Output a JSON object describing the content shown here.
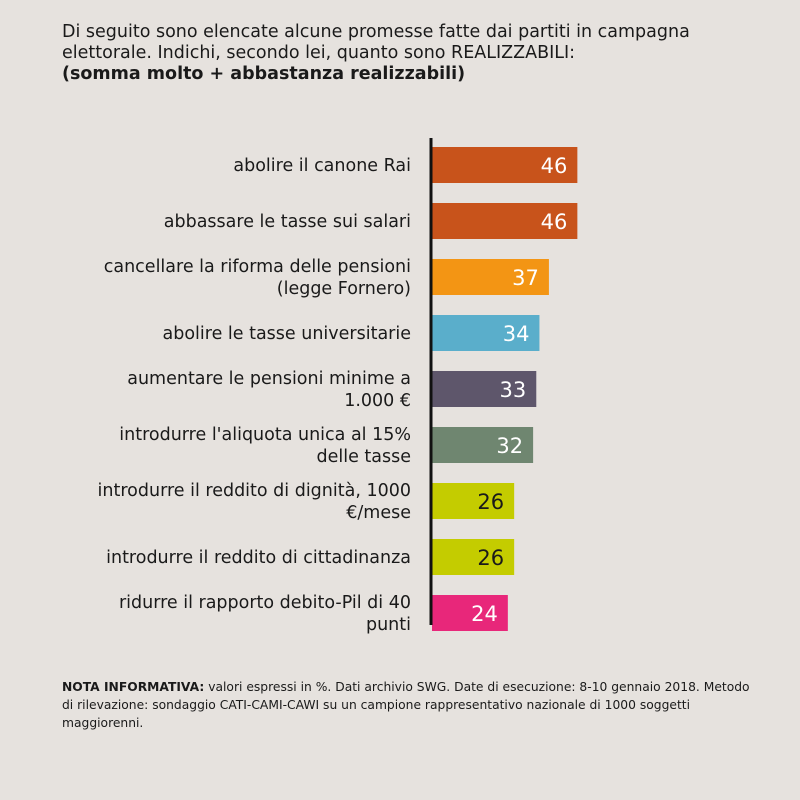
{
  "header": {
    "question": "Di seguito sono elencate alcune promesse fatte dai partiti in campagna elettorale. Indichi, secondo lei, quanto sono REALIZZABILI:",
    "subtitle": "(somma molto + abbastanza realizzabili)"
  },
  "footnote": {
    "label": "NOTA INFORMATIVA:",
    "text": "valori espressi in %. Dati archivio SWG. Date di esecuzione: 8-10 gennaio 2018. Metodo di rilevazione: sondaggio CATI-CAMI-CAWI su un campione rappresentativo nazionale di 1000 soggetti maggiorenni."
  },
  "chart_data": {
    "type": "bar",
    "orientation": "horizontal",
    "unit": "%",
    "xlim": [
      0,
      100
    ],
    "categories": [
      [
        "abolire il canone Rai"
      ],
      [
        "abbassare le tasse sui salari"
      ],
      [
        "cancellare la riforma delle pensioni",
        "(legge Fornero)"
      ],
      [
        "abolire le tasse universitarie"
      ],
      [
        "aumentare le pensioni minime a",
        "1.000 €"
      ],
      [
        "introdurre l'aliquota unica al 15%",
        "delle tasse"
      ],
      [
        "introdurre il reddito di dignità, 1000",
        "€/mese"
      ],
      [
        "introdurre il reddito di cittadinanza"
      ],
      [
        "ridurre il rapporto debito-Pil di 40",
        "punti"
      ]
    ],
    "values": [
      46,
      46,
      37,
      34,
      33,
      32,
      26,
      26,
      24
    ],
    "colors": [
      "#c8531b",
      "#c8531b",
      "#f39514",
      "#5aaecb",
      "#5e566b",
      "#6f8670",
      "#c4cc00",
      "#c4cc00",
      "#e8277a"
    ],
    "value_label_colors": [
      "#ffffff",
      "#ffffff",
      "#ffffff",
      "#ffffff",
      "#ffffff",
      "#ffffff",
      "#1a1a1a",
      "#1a1a1a",
      "#ffffff"
    ],
    "axis_color": "#111111",
    "grid": false,
    "legend": "none"
  }
}
